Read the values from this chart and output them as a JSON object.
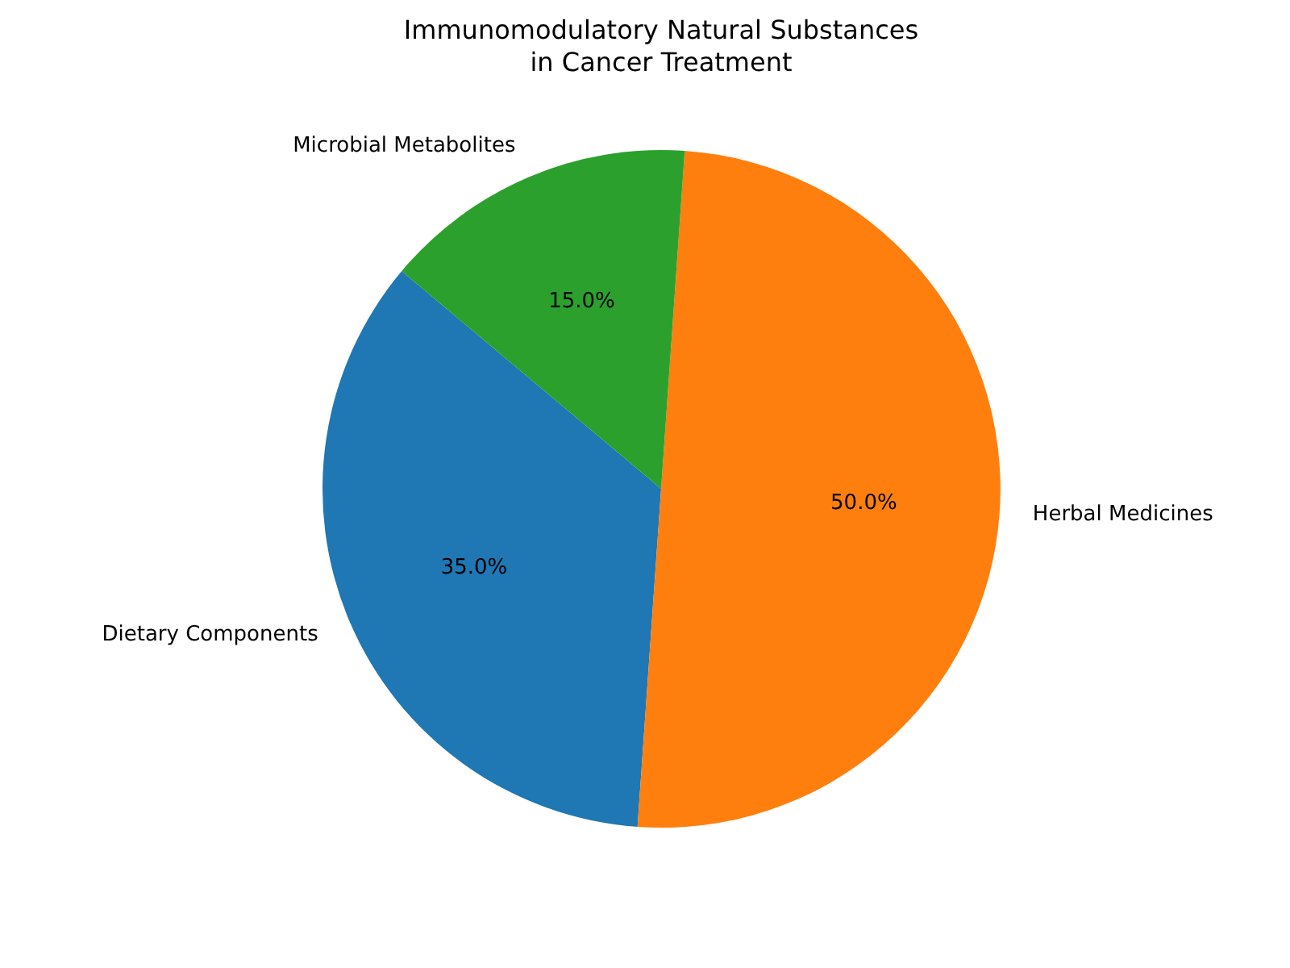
{
  "chart_data": {
    "type": "pie",
    "title": "Immunomodulatory Natural Substances\nin Cancer Treatment",
    "categories": [
      "Dietary Components",
      "Herbal Medicines",
      "Microbial Metabolites"
    ],
    "values": [
      35,
      50,
      15
    ],
    "colors": [
      "#1f77b4",
      "#ff7f0e",
      "#2ca02c"
    ],
    "value_labels": [
      "35.0%",
      "50.0%",
      "15.0%"
    ]
  }
}
